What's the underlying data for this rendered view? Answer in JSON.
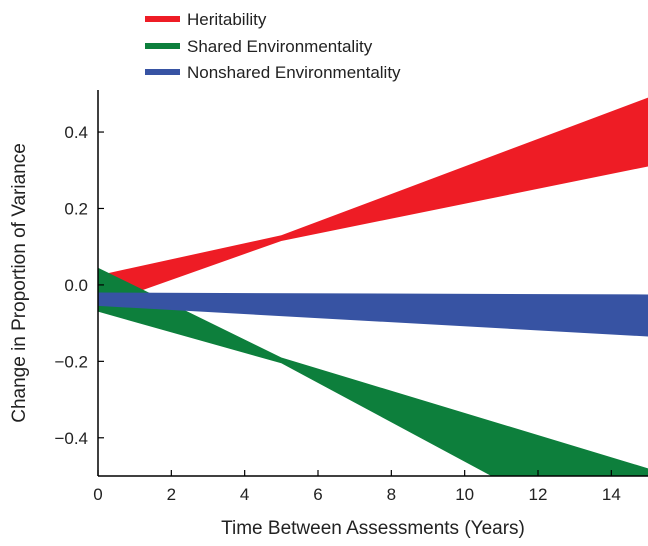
{
  "chart_data": {
    "type": "area",
    "xlabel": "Time Between Assessments (Years)",
    "ylabel": "Change in Proportion of Variance",
    "xlim": [
      0,
      15
    ],
    "ylim": [
      -0.5,
      0.5
    ],
    "x_ticks": [
      0,
      2,
      4,
      6,
      8,
      10,
      12,
      14
    ],
    "x_tick_labels": [
      "0",
      "2",
      "4",
      "6",
      "8",
      "10",
      "12",
      "14"
    ],
    "y_ticks": [
      0.4,
      0.2,
      0.0,
      -0.2,
      -0.4
    ],
    "y_tick_labels": [
      "0.4",
      "0.2",
      "0.0",
      "−0.2",
      "−0.4"
    ],
    "grid": false,
    "legend_position": "top-left",
    "series": [
      {
        "name": "Heritability",
        "color": "#ee1c25",
        "x": [
          0,
          5,
          15
        ],
        "upper": [
          0.025,
          0.13,
          0.49
        ],
        "lower": [
          -0.055,
          0.115,
          0.31
        ]
      },
      {
        "name": "Shared Environmentality",
        "color": "#0d7f3c",
        "x": [
          0,
          5,
          15
        ],
        "upper": [
          0.045,
          -0.19,
          -0.48
        ],
        "lower": [
          -0.07,
          -0.205,
          -0.72
        ]
      },
      {
        "name": "Nonshared Environmentality",
        "color": "#3753a3",
        "x": [
          0,
          15
        ],
        "upper": [
          -0.02,
          -0.025
        ],
        "lower": [
          -0.055,
          -0.135
        ]
      }
    ]
  }
}
